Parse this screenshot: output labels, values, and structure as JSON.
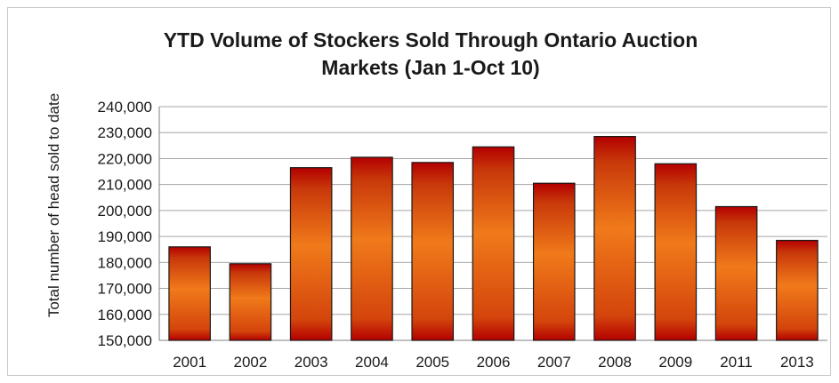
{
  "chart_data": {
    "type": "bar",
    "title_lines": [
      "YTD Volume of Stockers Sold Through Ontario Auction",
      "Markets (Jan 1-Oct 10)"
    ],
    "xlabel": "",
    "ylabel": "Total number of head sold to date",
    "categories": [
      "2001",
      "2002",
      "2003",
      "2004",
      "2005",
      "2006",
      "2007",
      "2008",
      "2009",
      "2011",
      "2013"
    ],
    "values": [
      186000,
      179500,
      216500,
      220500,
      218500,
      224500,
      210500,
      228500,
      218000,
      201500,
      188500
    ],
    "ylim": [
      150000,
      240000
    ],
    "yticks": [
      150000,
      160000,
      170000,
      180000,
      190000,
      200000,
      210000,
      220000,
      230000,
      240000
    ],
    "ytick_labels": [
      "150,000",
      "160,000",
      "170,000",
      "180,000",
      "190,000",
      "200,000",
      "210,000",
      "220,000",
      "230,000",
      "240,000"
    ],
    "grid": true,
    "legend": "none",
    "colors": {
      "bar_edge": "#b30000",
      "bar_center": "#f07a1a",
      "bar_outline": "#1a1a1a",
      "grid": "#a6a6a6"
    }
  }
}
